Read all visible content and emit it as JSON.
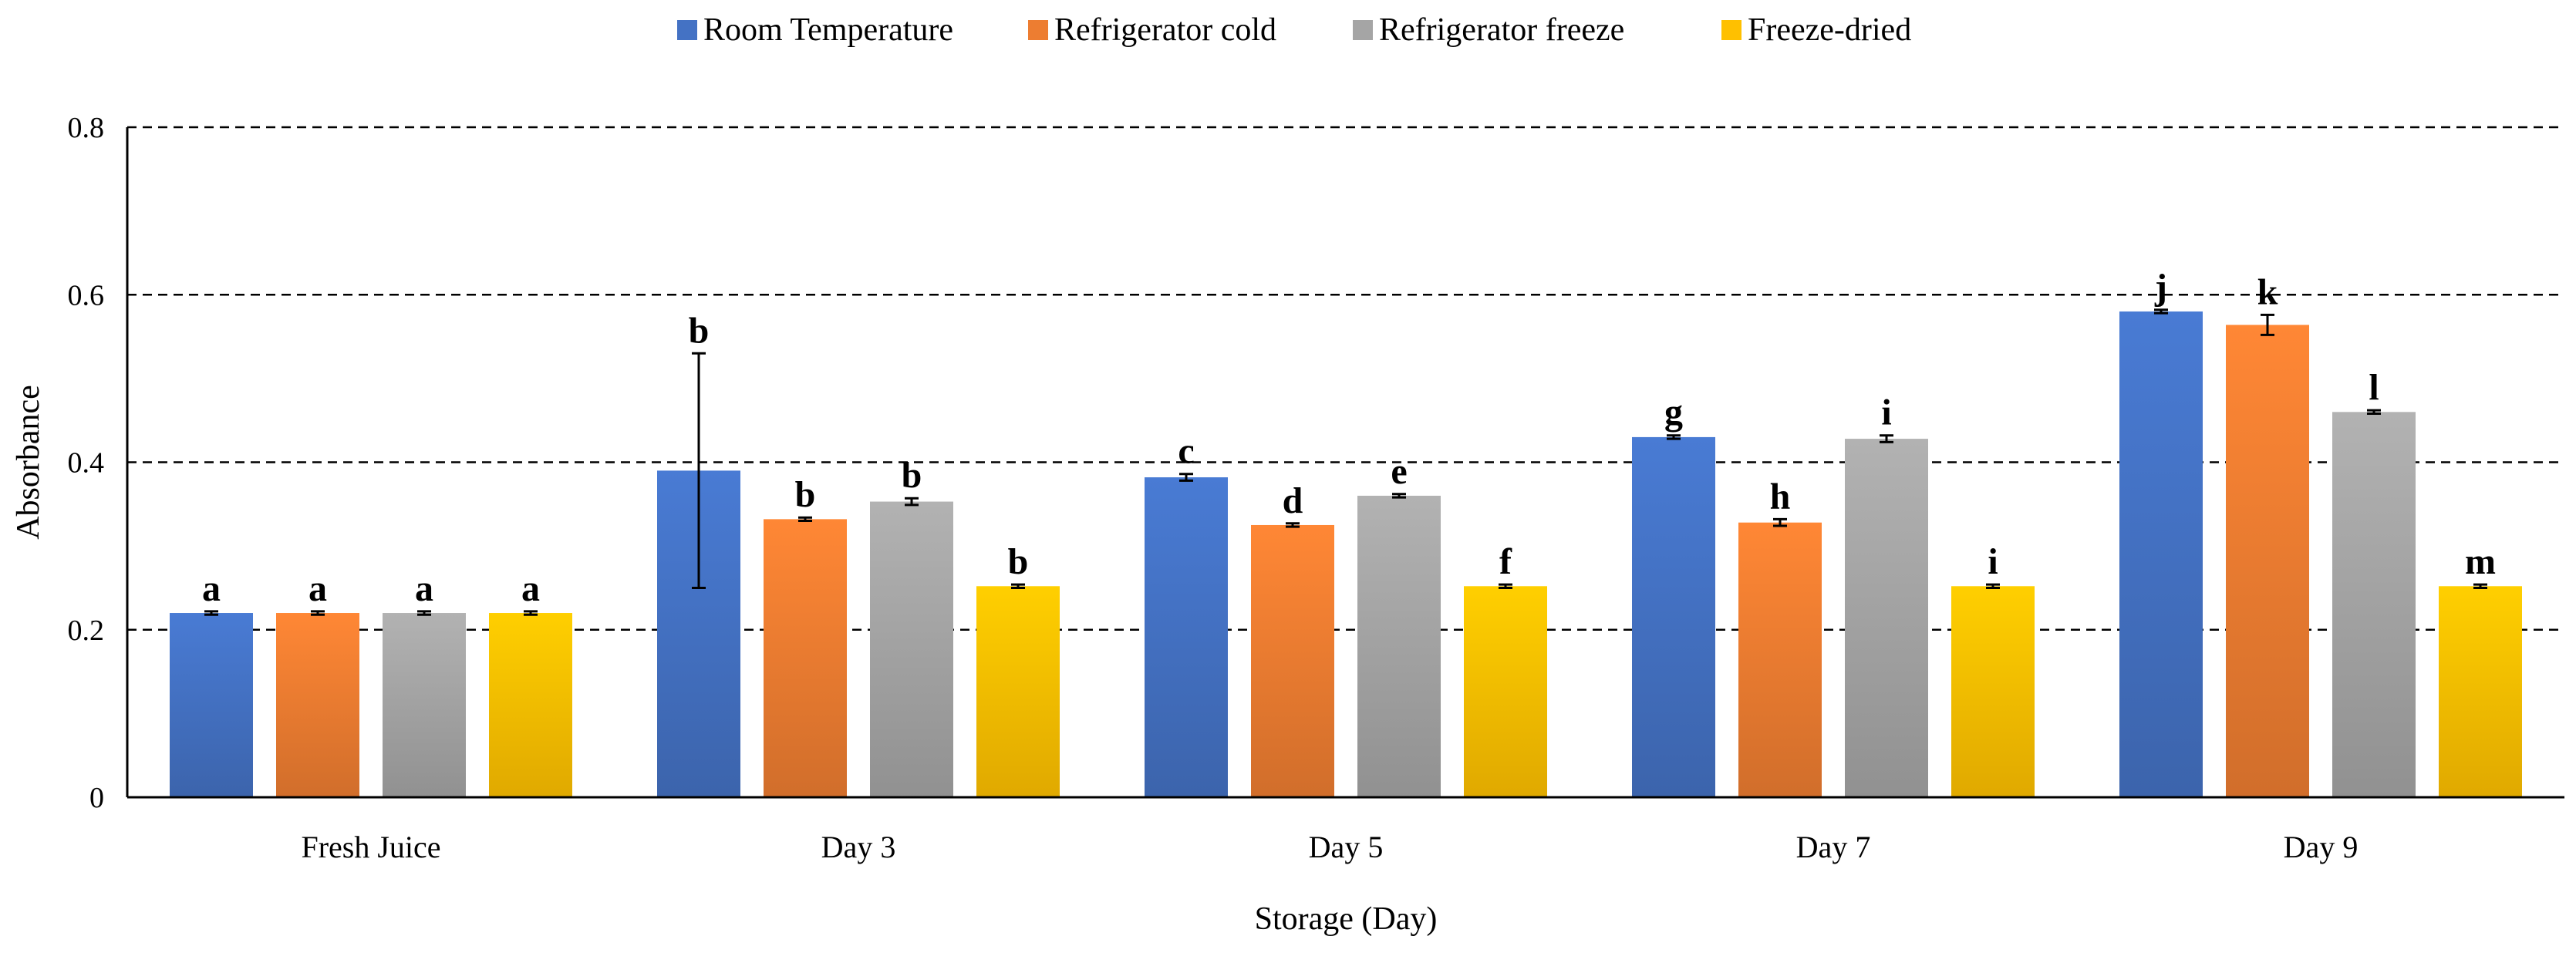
{
  "chart_data": {
    "type": "bar",
    "title": "",
    "xlabel": "Storage (Day)",
    "ylabel": "Absorbance",
    "ylim": [
      0,
      0.8
    ],
    "yticks": [
      "0",
      "0.2",
      "0.4",
      "0.6",
      "0.8"
    ],
    "ytick_values": [
      0,
      0.2,
      0.4,
      0.6,
      0.8
    ],
    "grid": "dashed-horizontal",
    "legend_position": "top-center",
    "categories": [
      "Fresh Juice",
      "Day 3",
      "Day 5",
      "Day 7",
      "Day 9"
    ],
    "series": [
      {
        "name": "Room Temperature",
        "color": "#4472C4",
        "values": [
          0.22,
          0.39,
          0.382,
          0.43,
          0.58
        ],
        "errors": [
          0.002,
          0.14,
          0.004,
          0.002,
          0.002
        ],
        "labels": [
          "a",
          "b",
          "c",
          "g",
          "j"
        ]
      },
      {
        "name": "Refrigerator cold",
        "color": "#ED7D31",
        "values": [
          0.22,
          0.332,
          0.325,
          0.328,
          0.564
        ],
        "errors": [
          0.002,
          0.002,
          0.002,
          0.004,
          0.012
        ],
        "labels": [
          "a",
          "b",
          "d",
          "h",
          "k"
        ]
      },
      {
        "name": "Refrigerator freeze",
        "color": "#A5A5A5",
        "values": [
          0.22,
          0.353,
          0.36,
          0.428,
          0.46
        ],
        "errors": [
          0.002,
          0.004,
          0.002,
          0.004,
          0.002
        ],
        "labels": [
          "a",
          "b",
          "e",
          "i",
          "l"
        ]
      },
      {
        "name": "Freeze-dried",
        "color": "#FFC000",
        "values": [
          0.22,
          0.252,
          0.252,
          0.252,
          0.252
        ],
        "errors": [
          0.002,
          0.002,
          0.002,
          0.002,
          0.002
        ],
        "labels": [
          "a",
          "b",
          "f",
          "i",
          "m"
        ]
      }
    ]
  }
}
